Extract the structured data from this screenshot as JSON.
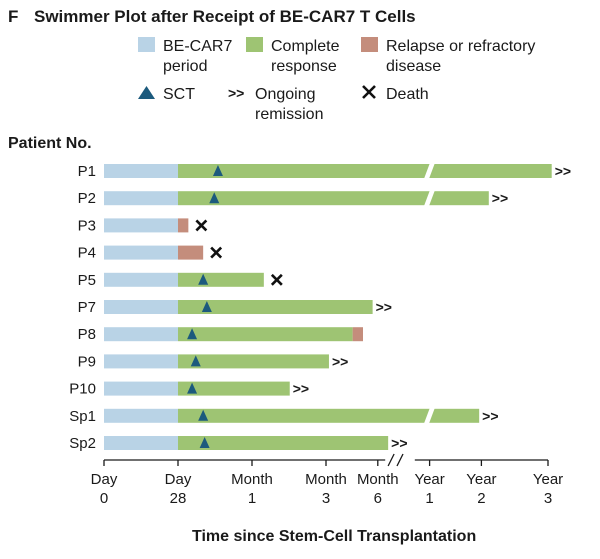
{
  "panel_letter": "F",
  "chart_data": {
    "type": "swimmer",
    "title": "Swimmer Plot after Receipt of BE-CAR7 T Cells",
    "ylabel": "Patient No.",
    "xlabel": "Time since Stem-Cell Transplantation",
    "colors": {
      "car7": "#b9d3e6",
      "complete": "#9ec473",
      "relapse": "#c48d7c",
      "sct": "#1c5a7d",
      "death": "#111111"
    },
    "legend": {
      "car7_line1": "BE-CAR7",
      "car7_line2": "period",
      "complete_line1": "Complete",
      "complete_line2": "response",
      "relapse_line1": "Relapse or refractory",
      "relapse_line2": "disease",
      "sct": "SCT",
      "ongoing_symbol": ">>",
      "ongoing_line1": "Ongoing",
      "ongoing_line2": "remission",
      "death": "Death"
    },
    "x_ticks": [
      {
        "line1": "Day",
        "line2": "0",
        "pos": 0
      },
      {
        "line1": "Day",
        "line2": "28",
        "pos": 1
      },
      {
        "line1": "Month",
        "line2": "1",
        "pos": 2
      },
      {
        "line1": "Month",
        "line2": "3",
        "pos": 3
      },
      {
        "line1": "Month",
        "line2": "6",
        "pos": 3.7
      },
      {
        "line1": "Year",
        "line2": "1",
        "pos": 4.4
      },
      {
        "line1": "Year",
        "line2": "2",
        "pos": 5.1
      },
      {
        "line1": "Year",
        "line2": "3",
        "pos": 6.0
      }
    ],
    "patients": [
      {
        "id": "P1",
        "car7_end": 1,
        "cr_end": 6.05,
        "relapse_end": null,
        "sct": 1.54,
        "outcome": "ongoing",
        "break": true
      },
      {
        "id": "P2",
        "car7_end": 1,
        "cr_end": 5.2,
        "relapse_end": null,
        "sct": 1.49,
        "outcome": "ongoing",
        "break": true
      },
      {
        "id": "P3",
        "car7_end": 1,
        "cr_end": 1,
        "relapse_end": 1.14,
        "sct": null,
        "outcome": "death",
        "break": false
      },
      {
        "id": "P4",
        "car7_end": 1,
        "cr_end": 1,
        "relapse_end": 1.34,
        "sct": null,
        "outcome": "death",
        "break": false
      },
      {
        "id": "P5",
        "car7_end": 1,
        "cr_end": 2.16,
        "relapse_end": null,
        "sct": 1.34,
        "outcome": "death",
        "break": false
      },
      {
        "id": "P7",
        "car7_end": 1,
        "cr_end": 3.63,
        "relapse_end": null,
        "sct": 1.39,
        "outcome": "ongoing",
        "break": false
      },
      {
        "id": "P8",
        "car7_end": 1,
        "cr_end": 3.36,
        "relapse_end": 3.5,
        "sct": 1.19,
        "outcome": "none",
        "break": false
      },
      {
        "id": "P9",
        "car7_end": 1,
        "cr_end": 3.04,
        "relapse_end": null,
        "sct": 1.24,
        "outcome": "ongoing",
        "break": false
      },
      {
        "id": "P10",
        "car7_end": 1,
        "cr_end": 2.51,
        "relapse_end": null,
        "sct": 1.19,
        "outcome": "ongoing",
        "break": false
      },
      {
        "id": "Sp1",
        "car7_end": 1,
        "cr_end": 5.07,
        "relapse_end": null,
        "sct": 1.34,
        "outcome": "ongoing",
        "break": true
      },
      {
        "id": "Sp2",
        "car7_end": 1,
        "cr_end": 3.84,
        "relapse_end": null,
        "sct": 1.36,
        "outcome": "ongoing",
        "break": false
      }
    ],
    "ongoing_symbol": ">>",
    "death_symbol": "×"
  }
}
